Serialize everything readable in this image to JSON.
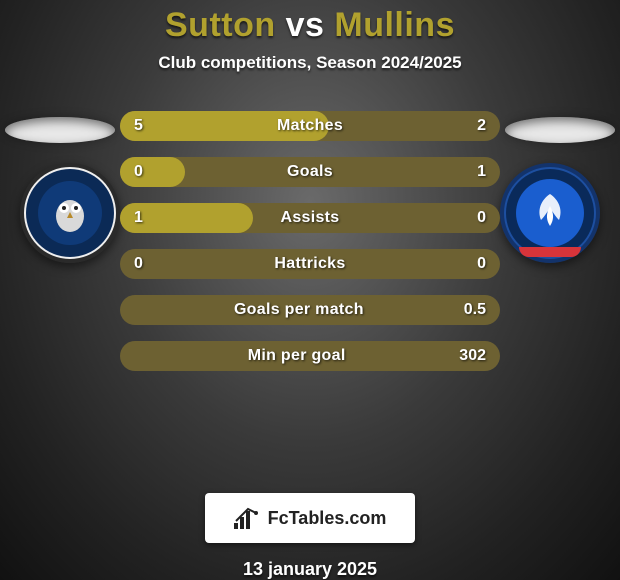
{
  "title": {
    "player1": "Sutton",
    "vs": "vs",
    "player2": "Mullins",
    "color_player1": "#b1a12e",
    "color_vs": "#ffffff",
    "color_player2": "#b1a12e"
  },
  "subtitle": "Club competitions, Season 2024/2025",
  "badges": {
    "left": {
      "outer_bg": "#efefef",
      "outer_border": "#2a2a2a",
      "ring_color": "#0b2a56",
      "inner_bg": "#0f3a78",
      "label": "Oldham Athletic"
    },
    "right": {
      "outer_bg": "#1d4fa0",
      "outer_border": "#13336b",
      "ring_color": "#0a2a5a",
      "inner_bg": "#1a5ecf",
      "accent": "#d8343a",
      "label": "Aldershot Town FC"
    }
  },
  "bars": {
    "track_color": "#6d6132",
    "fill_color": "#b1a12e",
    "label_color": "#ffffff",
    "rows": [
      {
        "label": "Matches",
        "left": "5",
        "right": "2",
        "fill_pct": 55
      },
      {
        "label": "Goals",
        "left": "0",
        "right": "1",
        "fill_pct": 17
      },
      {
        "label": "Assists",
        "left": "1",
        "right": "0",
        "fill_pct": 35
      },
      {
        "label": "Hattricks",
        "left": "0",
        "right": "0",
        "fill_pct": 0
      },
      {
        "label": "Goals per match",
        "left": "",
        "right": "0.5",
        "fill_pct": 0
      },
      {
        "label": "Min per goal",
        "left": "",
        "right": "302",
        "fill_pct": 0
      }
    ]
  },
  "footer": {
    "logo_text": "FcTables.com",
    "date": "13 january 2025",
    "card_bg": "#ffffff",
    "icon_color": "#222222"
  }
}
